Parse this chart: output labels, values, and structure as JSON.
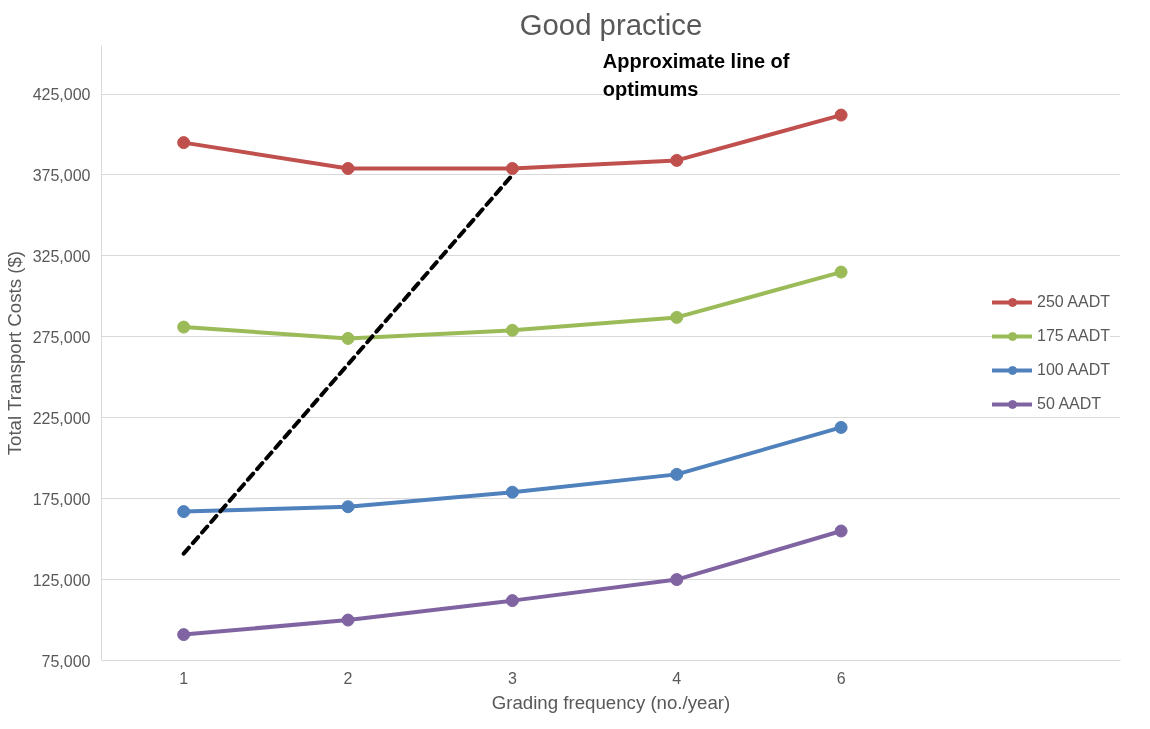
{
  "chart_data": {
    "type": "line",
    "title": "Good practice",
    "xlabel": "Grading frequency (no./year)",
    "ylabel": "Total Transport Costs ($)",
    "categories": [
      "1",
      "2",
      "3",
      "4",
      "6"
    ],
    "series": [
      {
        "name": "250 AADT",
        "color": "#c0504d",
        "values": [
          395000,
          379000,
          379000,
          384000,
          412000
        ]
      },
      {
        "name": "175 AADT",
        "color": "#9bbb59",
        "values": [
          281000,
          274000,
          279000,
          287000,
          315000
        ]
      },
      {
        "name": "100 AADT",
        "color": "#4f81bd",
        "values": [
          167000,
          170000,
          179000,
          190000,
          219000
        ]
      },
      {
        "name": "50 AADT",
        "color": "#8064a2",
        "values": [
          91000,
          100000,
          112000,
          125000,
          155000
        ]
      },
      {
        "color": "#000000",
        "values": [
          141000,
          258000,
          375000,
          null,
          null
        ],
        "line_style": "dashed",
        "marker": "none"
      }
    ],
    "annotations": [
      "Approximate line of optimums"
    ],
    "ylim": [
      75000,
      455000
    ],
    "yticks": [
      {
        "value": 75000,
        "label": "75,000"
      },
      {
        "value": 125000,
        "label": "125,000"
      },
      {
        "value": 175000,
        "label": "175,000"
      },
      {
        "value": 225000,
        "label": "225,000"
      },
      {
        "value": 275000,
        "label": "275,000"
      },
      {
        "value": 325000,
        "label": "325,000"
      },
      {
        "value": 375000,
        "label": "375,000"
      },
      {
        "value": 425000,
        "label": "425,000"
      }
    ],
    "grid": "y",
    "legend": "right",
    "marker": "circle",
    "line_style": "solid"
  }
}
